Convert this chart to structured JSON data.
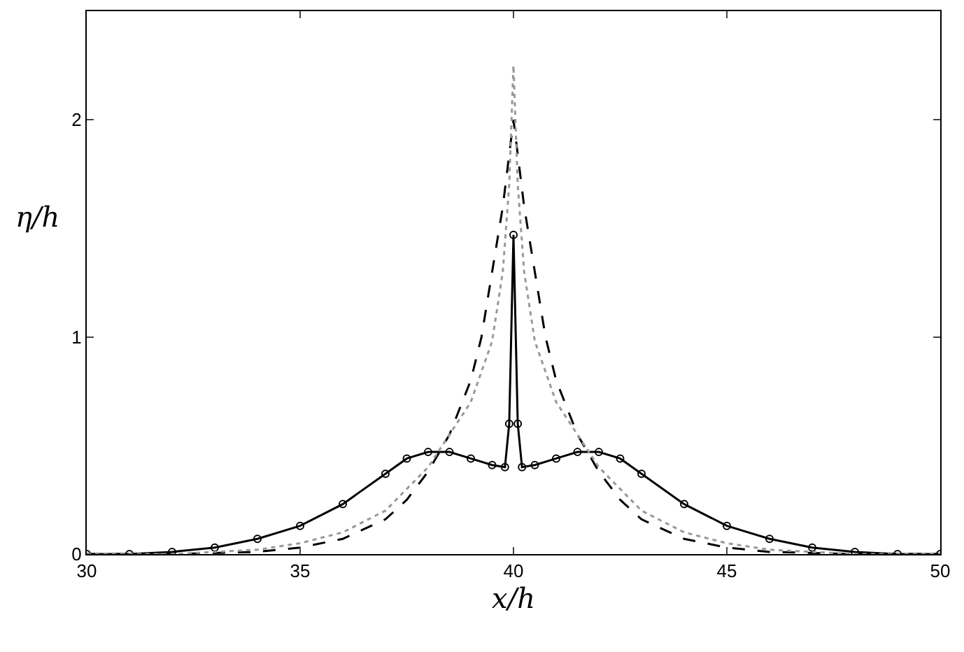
{
  "chart_data": {
    "type": "line",
    "xlabel": "x/h",
    "ylabel": "η/h",
    "xlim": [
      30,
      50
    ],
    "ylim": [
      0,
      2.5
    ],
    "xticks": [
      30,
      35,
      40,
      45,
      50
    ],
    "yticks": [
      0,
      1,
      2
    ],
    "series": [
      {
        "color": "#000000",
        "marker": "circle",
        "line_style": "solid",
        "x": [
          30,
          31,
          32,
          33,
          34,
          35,
          36,
          37,
          37.5,
          38,
          38.5,
          39,
          39.5,
          39.8,
          39.9,
          40,
          40.1,
          40.2,
          40.5,
          41,
          41.5,
          42,
          42.5,
          43,
          44,
          45,
          46,
          47,
          48,
          49,
          50
        ],
        "values": [
          0,
          0,
          0.01,
          0.03,
          0.07,
          0.13,
          0.23,
          0.37,
          0.44,
          0.47,
          0.47,
          0.44,
          0.41,
          0.4,
          0.6,
          1.47,
          0.6,
          0.4,
          0.41,
          0.44,
          0.47,
          0.47,
          0.44,
          0.37,
          0.23,
          0.13,
          0.07,
          0.03,
          0.01,
          0,
          0
        ]
      },
      {
        "color": "#000000",
        "marker": "none",
        "line_style": "dashed",
        "x": [
          30,
          32,
          34,
          35,
          36,
          37,
          37.5,
          38,
          38.5,
          39,
          39.25,
          39.5,
          39.75,
          40,
          40.25,
          40.5,
          40.75,
          41,
          41.5,
          42,
          42.5,
          43,
          44,
          45,
          46,
          48,
          50
        ],
        "values": [
          0,
          0,
          0.01,
          0.03,
          0.07,
          0.16,
          0.25,
          0.38,
          0.55,
          0.8,
          1.0,
          1.3,
          1.6,
          2.0,
          1.6,
          1.3,
          1.0,
          0.8,
          0.55,
          0.38,
          0.25,
          0.16,
          0.07,
          0.03,
          0.01,
          0,
          0
        ]
      },
      {
        "color": "#999999",
        "marker": "none",
        "line_style": "dotted",
        "x": [
          30,
          32,
          34,
          35,
          36,
          37,
          37.5,
          38,
          38.5,
          39,
          39.5,
          39.75,
          39.9,
          40,
          40.1,
          40.25,
          40.5,
          41,
          41.5,
          42,
          42.5,
          43,
          44,
          45,
          46,
          48,
          50
        ],
        "values": [
          0,
          0,
          0.02,
          0.05,
          0.1,
          0.2,
          0.3,
          0.4,
          0.55,
          0.7,
          0.98,
          1.3,
          1.7,
          2.25,
          1.7,
          1.3,
          0.98,
          0.7,
          0.55,
          0.4,
          0.3,
          0.2,
          0.1,
          0.05,
          0.02,
          0,
          0
        ]
      }
    ]
  }
}
